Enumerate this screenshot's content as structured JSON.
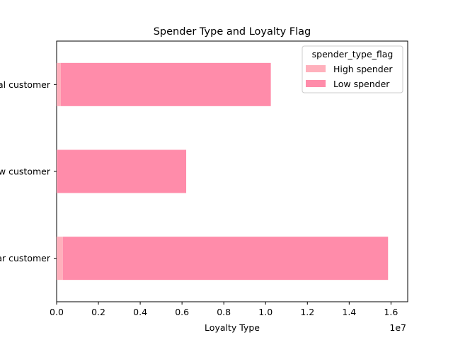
{
  "chart_data": {
    "type": "bar",
    "orientation": "horizontal",
    "stacked": true,
    "title": "Spender Type and Loyalty Flag",
    "xlabel": "Loyalty Type",
    "ylabel": "",
    "x_offset_label": "1e7",
    "categories": [
      "Loyal customer",
      "New customer",
      "Regular customer"
    ],
    "visible_category_labels": [
      "customer",
      "customer",
      "customer"
    ],
    "x_ticks": [
      0.0,
      0.2,
      0.4,
      0.6,
      0.8,
      1.0,
      1.2,
      1.4,
      1.6
    ],
    "x_tick_labels": [
      "0.0",
      "0.2",
      "0.4",
      "0.6",
      "0.8",
      "1.0",
      "1.2",
      "1.4",
      "1.6"
    ],
    "xlim": [
      0,
      16.8
    ],
    "xlim_scale_note": "1e7",
    "legend": {
      "title": "spender_type_flag",
      "placement": "upper right"
    },
    "series": [
      {
        "name": "High spender",
        "color": "#ffb0bc",
        "values_1e7": [
          0.02,
          0.003,
          0.03
        ]
      },
      {
        "name": "Low spender",
        "color": "#ff8caa",
        "values_1e7": [
          1.005,
          0.617,
          1.556
        ]
      }
    ]
  }
}
